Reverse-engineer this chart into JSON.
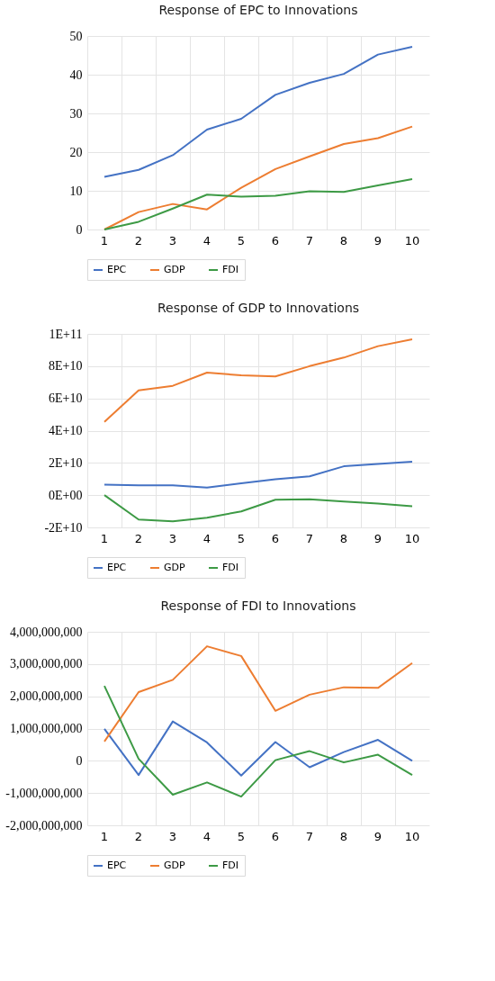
{
  "chart_data": [
    {
      "type": "line",
      "title": "Response of EPC to Innovations",
      "categories": [
        "1",
        "2",
        "3",
        "4",
        "5",
        "6",
        "7",
        "8",
        "9",
        "10"
      ],
      "series": [
        {
          "name": "EPC",
          "color": "#4472c4",
          "values": [
            13.6,
            15.4,
            19.2,
            25.8,
            28.6,
            34.8,
            37.9,
            40.2,
            45.2,
            47.2
          ]
        },
        {
          "name": "GDP",
          "color": "#ed7d31",
          "values": [
            0,
            4.5,
            6.6,
            5.2,
            10.8,
            15.6,
            18.9,
            22.1,
            23.6,
            26.6
          ]
        },
        {
          "name": "FDI",
          "color": "#3d9a45",
          "values": [
            0,
            2.0,
            5.4,
            9.0,
            8.5,
            8.7,
            9.9,
            9.7,
            11.4,
            13.0
          ]
        }
      ],
      "ylim": [
        0,
        50
      ],
      "yticks": [
        0,
        10,
        20,
        30,
        40,
        50
      ],
      "grid": true,
      "legend": "bottom",
      "marker": "none",
      "line_style": "solid"
    },
    {
      "type": "line",
      "title": "Response of GDP to Innovations",
      "categories": [
        "1",
        "2",
        "3",
        "4",
        "5",
        "6",
        "7",
        "8",
        "9",
        "10"
      ],
      "series": [
        {
          "name": "EPC",
          "color": "#4472c4",
          "values": [
            6500000000,
            6100000000,
            6100000000,
            4700000000,
            7400000000,
            9900000000,
            11700000000,
            17900000000,
            19400000000,
            20700000000
          ]
        },
        {
          "name": "GDP",
          "color": "#ed7d31",
          "values": [
            45400000000,
            65000000000,
            67800000000,
            76000000000,
            74300000000,
            73600000000,
            80000000000,
            85300000000,
            92400000000,
            96600000000
          ]
        },
        {
          "name": "FDI",
          "color": "#3d9a45",
          "values": [
            0,
            -15100000000,
            -16200000000,
            -14000000000,
            -10100000000,
            -2800000000,
            -2600000000,
            -3900000000,
            -5200000000,
            -6900000000
          ]
        }
      ],
      "ylim": [
        -20000000000,
        100000000000
      ],
      "yticks": [
        {
          "value": -20000000000,
          "label": "-2E+10"
        },
        {
          "value": 0,
          "label": "0E+00"
        },
        {
          "value": 20000000000,
          "label": "2E+10"
        },
        {
          "value": 40000000000,
          "label": "4E+10"
        },
        {
          "value": 60000000000,
          "label": "6E+10"
        },
        {
          "value": 80000000000,
          "label": "8E+10"
        },
        {
          "value": 100000000000,
          "label": "1E+11"
        }
      ],
      "grid": true,
      "legend": "bottom",
      "marker": "none",
      "line_style": "solid"
    },
    {
      "type": "line",
      "title": "Response of FDI to Innovations",
      "categories": [
        "1",
        "2",
        "3",
        "4",
        "5",
        "6",
        "7",
        "8",
        "9",
        "10"
      ],
      "series": [
        {
          "name": "EPC",
          "color": "#4472c4",
          "values": [
            990000000,
            -440000000,
            1220000000,
            570000000,
            -460000000,
            580000000,
            -200000000,
            270000000,
            650000000,
            0
          ]
        },
        {
          "name": "GDP",
          "color": "#ed7d31",
          "values": [
            600000000,
            2130000000,
            2510000000,
            3550000000,
            3250000000,
            1550000000,
            2050000000,
            2280000000,
            2260000000,
            3030000000
          ]
        },
        {
          "name": "FDI",
          "color": "#3d9a45",
          "values": [
            2320000000,
            60000000,
            -1050000000,
            -670000000,
            -1110000000,
            20000000,
            300000000,
            -50000000,
            190000000,
            -440000000
          ]
        }
      ],
      "ylim": [
        -2000000000,
        4000000000
      ],
      "yticks": [
        {
          "value": -2000000000,
          "label": "-2,000,000,000"
        },
        {
          "value": -1000000000,
          "label": "-1,000,000,000"
        },
        {
          "value": 0,
          "label": "0"
        },
        {
          "value": 1000000000,
          "label": "1,000,000,000"
        },
        {
          "value": 2000000000,
          "label": "2,000,000,000"
        },
        {
          "value": 3000000000,
          "label": "3,000,000,000"
        },
        {
          "value": 4000000000,
          "label": "4,000,000,000"
        }
      ],
      "grid": true,
      "legend": "bottom",
      "marker": "none",
      "line_style": "solid"
    }
  ]
}
